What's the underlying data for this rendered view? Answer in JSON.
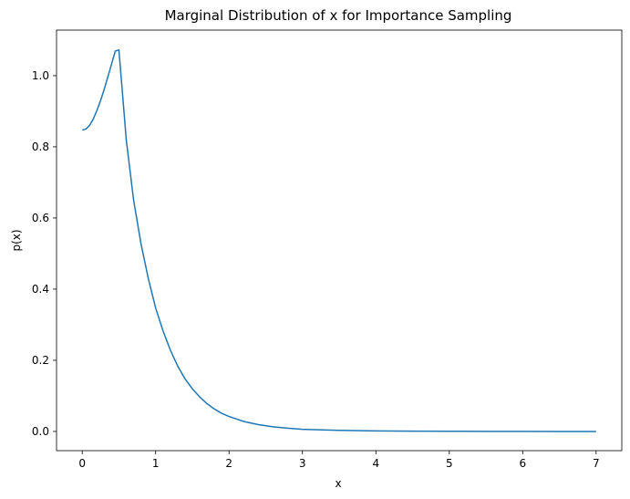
{
  "chart_data": {
    "type": "line",
    "title": "Marginal Distribution of x for Importance Sampling",
    "xlabel": "x",
    "ylabel": "p(x)",
    "xlim": [
      -0.35,
      7.35
    ],
    "ylim": [
      -0.054,
      1.128
    ],
    "grid": false,
    "legend": "none",
    "line_color": "#1f77b4",
    "x_ticks": [
      0,
      1,
      2,
      3,
      4,
      5,
      6,
      7
    ],
    "x_tick_labels": [
      "0",
      "1",
      "2",
      "3",
      "4",
      "5",
      "6",
      "7"
    ],
    "y_ticks": [
      0.0,
      0.2,
      0.4,
      0.6,
      0.8,
      1.0
    ],
    "y_tick_labels": [
      "0.0",
      "0.2",
      "0.4",
      "0.6",
      "0.8",
      "1.0"
    ],
    "series": [
      {
        "x": [
          0.0,
          0.05,
          0.1,
          0.15,
          0.2,
          0.25,
          0.3,
          0.35,
          0.4,
          0.45,
          0.5,
          0.6,
          0.7,
          0.8,
          0.9,
          1.0,
          1.1,
          1.2,
          1.3,
          1.4,
          1.5,
          1.6,
          1.7,
          1.8,
          1.9,
          2.0,
          2.2,
          2.4,
          2.6,
          2.8,
          3.0,
          3.5,
          4.0,
          4.5,
          5.0,
          5.5,
          6.0,
          6.5,
          7.0
        ],
        "y": [
          0.847,
          0.85,
          0.86,
          0.878,
          0.902,
          0.93,
          0.962,
          0.997,
          1.033,
          1.069,
          1.072,
          0.82,
          0.65,
          0.528,
          0.43,
          0.347,
          0.283,
          0.229,
          0.184,
          0.148,
          0.12,
          0.097,
          0.078,
          0.063,
          0.051,
          0.042,
          0.028,
          0.019,
          0.013,
          0.009,
          0.006,
          0.003,
          0.0015,
          0.0008,
          0.0004,
          0.0002,
          0.0001,
          0.0,
          0.0
        ]
      }
    ]
  }
}
